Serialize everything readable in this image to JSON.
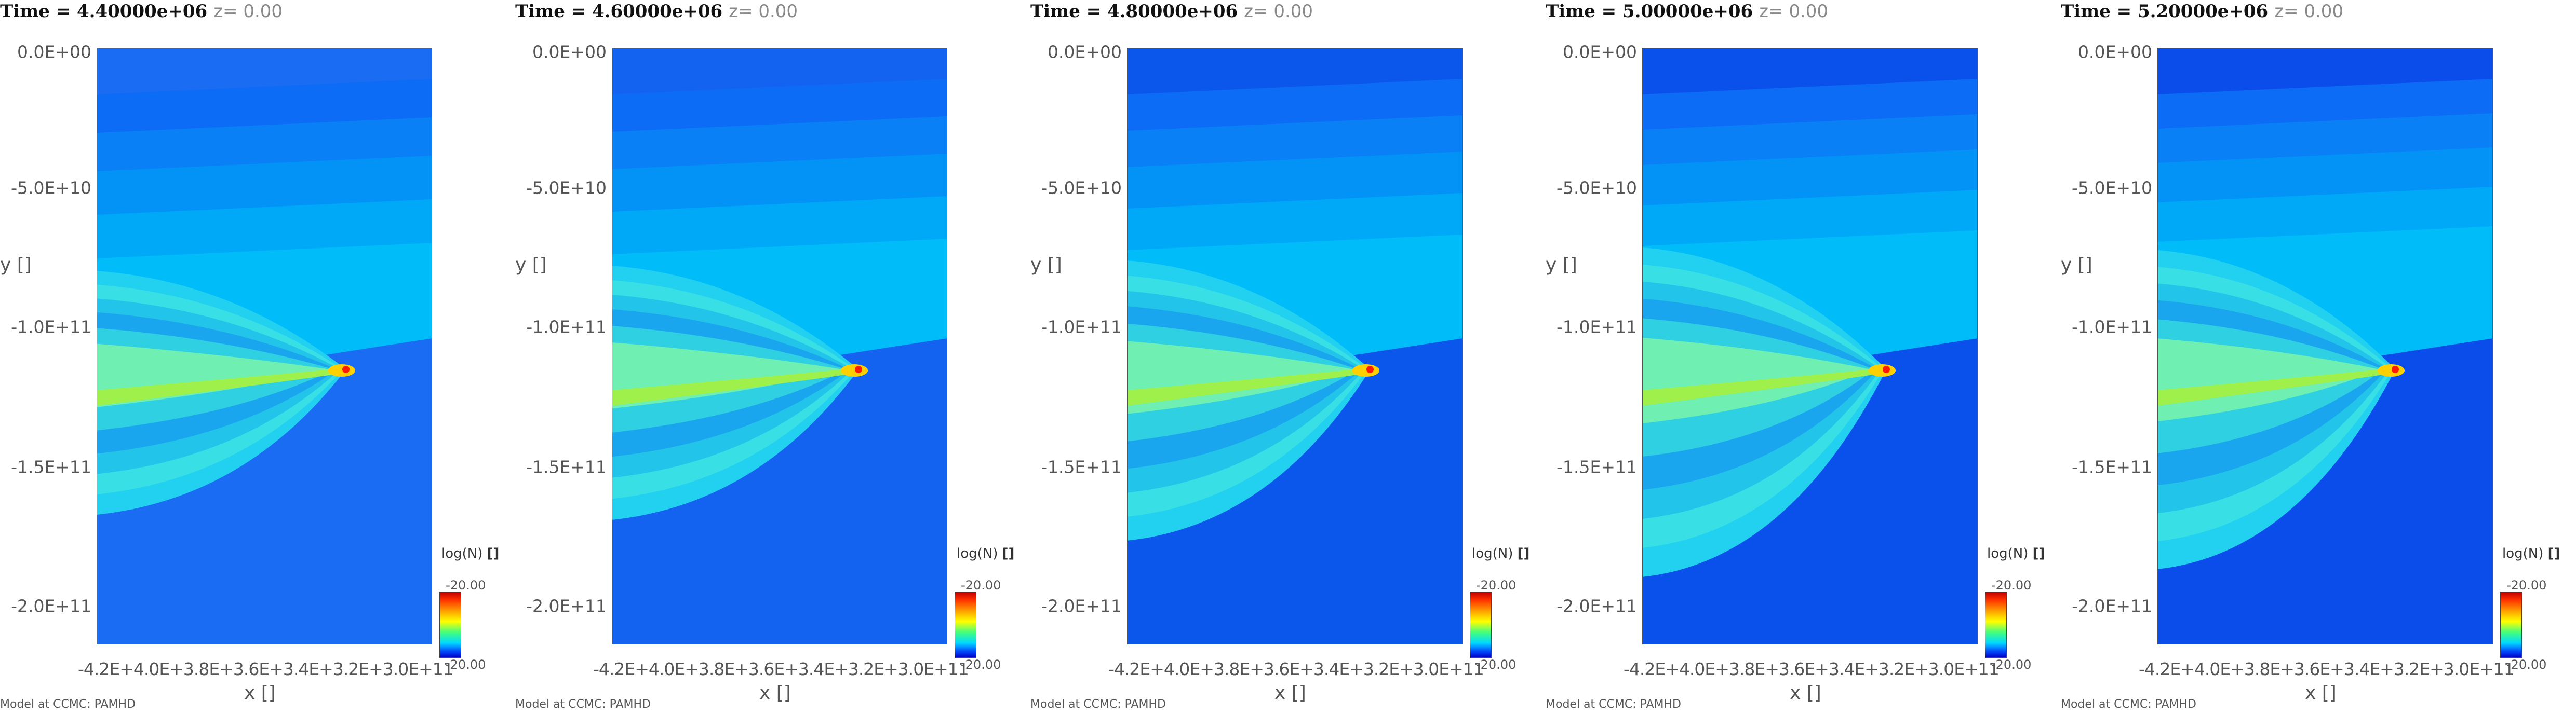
{
  "chart_data": [
    {
      "type": "heatmap",
      "time": "Time = 4.40000e+06",
      "z": "z= 0.00",
      "xlabel": "x []",
      "ylabel": "y []",
      "y_ticks": [
        "0.0E+00",
        "-5.0E+10",
        "-1.0E+11",
        "-1.5E+11",
        "-2.0E+11"
      ],
      "x_ticks": "-4.2E+4.0E+3.8E+3.6E+3.4E+3.2E+3.0E+11",
      "colorbar": {
        "label": "log(N)",
        "unit": "[]",
        "max": "-20.00",
        "min": "-20.00"
      },
      "credit": "Model at CCMC: PAMHD"
    },
    {
      "type": "heatmap",
      "time": "Time = 4.60000e+06",
      "z": "z= 0.00",
      "xlabel": "x []",
      "ylabel": "y []",
      "y_ticks": [
        "0.0E+00",
        "-5.0E+10",
        "-1.0E+11",
        "-1.5E+11",
        "-2.0E+11"
      ],
      "x_ticks": "-4.2E+4.0E+3.8E+3.6E+3.4E+3.2E+3.0E+11",
      "colorbar": {
        "label": "log(N)",
        "unit": "[]",
        "max": "-20.00",
        "min": "-20.00"
      },
      "credit": "Model at CCMC: PAMHD"
    },
    {
      "type": "heatmap",
      "time": "Time = 4.80000e+06",
      "z": "z= 0.00",
      "xlabel": "x []",
      "ylabel": "y []",
      "y_ticks": [
        "0.0E+00",
        "-5.0E+10",
        "-1.0E+11",
        "-1.5E+11",
        "-2.0E+11"
      ],
      "x_ticks": "-4.2E+4.0E+3.8E+3.6E+3.4E+3.2E+3.0E+11",
      "colorbar": {
        "label": "log(N)",
        "unit": "[]",
        "max": "-20.00",
        "min": "-20.00"
      },
      "credit": "Model at CCMC: PAMHD"
    },
    {
      "type": "heatmap",
      "time": "Time = 5.00000e+06",
      "z": "z= 0.00",
      "xlabel": "x []",
      "ylabel": "y []",
      "y_ticks": [
        "0.0E+00",
        "-5.0E+10",
        "-1.0E+11",
        "-1.5E+11",
        "-2.0E+11"
      ],
      "x_ticks": "-4.2E+4.0E+3.8E+3.6E+3.4E+3.2E+3.0E+11",
      "colorbar": {
        "label": "log(N)",
        "unit": "[]",
        "max": "-20.00",
        "min": "-20.00"
      },
      "credit": "Model at CCMC: PAMHD"
    },
    {
      "type": "heatmap",
      "time": "Time = 5.20000e+06",
      "z": "z= 0.00",
      "xlabel": "x []",
      "ylabel": "y []",
      "y_ticks": [
        "0.0E+00",
        "-5.0E+10",
        "-1.0E+11",
        "-1.5E+11",
        "-2.0E+11"
      ],
      "x_ticks": "-4.2E+4.0E+3.8E+3.6E+3.4E+3.2E+3.0E+11",
      "colorbar": {
        "label": "log(N)",
        "unit": "[]",
        "max": "-20.00",
        "min": "-20.00"
      },
      "credit": "Model at CCMC: PAMHD"
    }
  ]
}
